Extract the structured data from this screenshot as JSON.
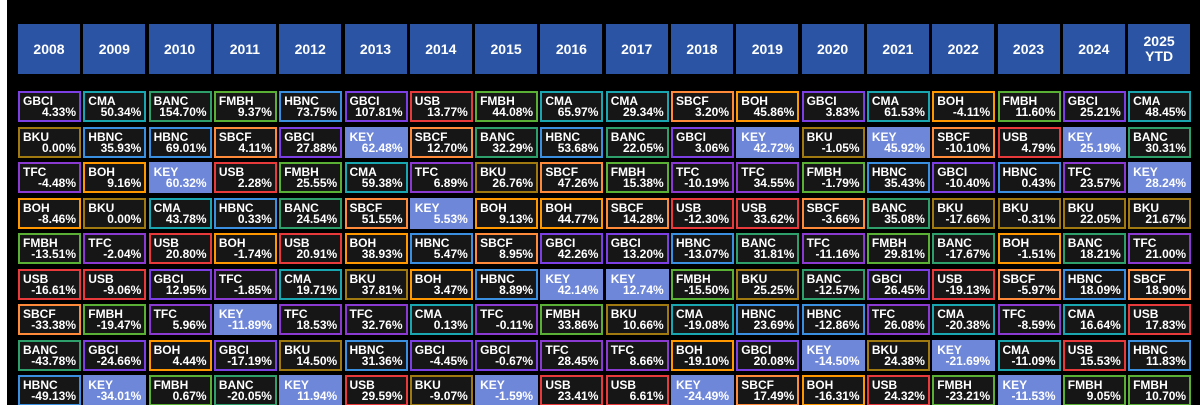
{
  "chart_data": {
    "type": "table",
    "columns": [
      "2008",
      "2009",
      "2010",
      "2011",
      "2012",
      "2013",
      "2014",
      "2015",
      "2016",
      "2017",
      "2018",
      "2019",
      "2020",
      "2021",
      "2022",
      "2023",
      "2024",
      "2025\nYTD"
    ],
    "ticker_colors": {
      "GBCI": "#7b3fe4",
      "CMA": "#1aa6b0",
      "BANC": "#2e9e6a",
      "FMBH": "#5ab034",
      "HBNC": "#3a8fe0",
      "USB": "#e83a3a",
      "SBCF": "#ff8a3a",
      "BOH": "#ff9800",
      "BKU": "#a07a10",
      "TFC": "#8a3ad0",
      "KEY": "#6f87d8"
    },
    "rows": [
      [
        [
          "GBCI",
          "4.33%"
        ],
        [
          "CMA",
          "50.34%"
        ],
        [
          "BANC",
          "154.70%"
        ],
        [
          "FMBH",
          "9.37%"
        ],
        [
          "HBNC",
          "73.75%"
        ],
        [
          "GBCI",
          "107.81%"
        ],
        [
          "USB",
          "13.77%"
        ],
        [
          "FMBH",
          "44.08%"
        ],
        [
          "CMA",
          "65.97%"
        ],
        [
          "CMA",
          "29.34%"
        ],
        [
          "SBCF",
          "3.20%"
        ],
        [
          "BOH",
          "45.86%"
        ],
        [
          "GBCI",
          "3.83%"
        ],
        [
          "CMA",
          "61.53%"
        ],
        [
          "BOH",
          "-4.11%"
        ],
        [
          "FMBH",
          "11.60%"
        ],
        [
          "GBCI",
          "25.21%"
        ],
        [
          "CMA",
          "48.45%"
        ]
      ],
      [
        [
          "BKU",
          "0.00%"
        ],
        [
          "HBNC",
          "35.93%"
        ],
        [
          "HBNC",
          "69.01%"
        ],
        [
          "SBCF",
          "4.11%"
        ],
        [
          "GBCI",
          "27.88%"
        ],
        [
          "KEY",
          "62.48%"
        ],
        [
          "SBCF",
          "12.70%"
        ],
        [
          "BANC",
          "32.29%"
        ],
        [
          "HBNC",
          "53.68%"
        ],
        [
          "BANC",
          "22.05%"
        ],
        [
          "GBCI",
          "3.06%"
        ],
        [
          "KEY",
          "42.72%"
        ],
        [
          "BKU",
          "-1.05%"
        ],
        [
          "KEY",
          "45.92%"
        ],
        [
          "SBCF",
          "-10.10%"
        ],
        [
          "USB",
          "4.79%"
        ],
        [
          "KEY",
          "25.19%"
        ],
        [
          "BANC",
          "30.31%"
        ]
      ],
      [
        [
          "TFC",
          "-4.48%"
        ],
        [
          "BOH",
          "9.16%"
        ],
        [
          "KEY",
          "60.32%"
        ],
        [
          "USB",
          "2.28%"
        ],
        [
          "FMBH",
          "25.55%"
        ],
        [
          "CMA",
          "59.38%"
        ],
        [
          "TFC",
          "6.89%"
        ],
        [
          "BKU",
          "26.76%"
        ],
        [
          "SBCF",
          "47.26%"
        ],
        [
          "FMBH",
          "15.38%"
        ],
        [
          "TFC",
          "-10.19%"
        ],
        [
          "TFC",
          "34.55%"
        ],
        [
          "FMBH",
          "-1.79%"
        ],
        [
          "HBNC",
          "35.43%"
        ],
        [
          "GBCI",
          "-10.40%"
        ],
        [
          "HBNC",
          "0.43%"
        ],
        [
          "TFC",
          "23.57%"
        ],
        [
          "KEY",
          "28.24%"
        ]
      ],
      [
        [
          "BOH",
          "-8.46%"
        ],
        [
          "BKU",
          "0.00%"
        ],
        [
          "CMA",
          "43.78%"
        ],
        [
          "HBNC",
          "0.33%"
        ],
        [
          "BANC",
          "24.54%"
        ],
        [
          "SBCF",
          "51.55%"
        ],
        [
          "KEY",
          "5.53%"
        ],
        [
          "BOH",
          "9.13%"
        ],
        [
          "BOH",
          "44.77%"
        ],
        [
          "SBCF",
          "14.28%"
        ],
        [
          "USB",
          "-12.30%"
        ],
        [
          "USB",
          "33.62%"
        ],
        [
          "SBCF",
          "-3.66%"
        ],
        [
          "BANC",
          "35.08%"
        ],
        [
          "BKU",
          "-17.66%"
        ],
        [
          "BKU",
          "-0.31%"
        ],
        [
          "BKU",
          "22.05%"
        ],
        [
          "BKU",
          "21.67%"
        ]
      ],
      [
        [
          "FMBH",
          "-13.51%"
        ],
        [
          "TFC",
          "-2.04%"
        ],
        [
          "USB",
          "20.80%"
        ],
        [
          "BOH",
          "-1.74%"
        ],
        [
          "USB",
          "20.91%"
        ],
        [
          "BOH",
          "38.93%"
        ],
        [
          "HBNC",
          "5.47%"
        ],
        [
          "SBCF",
          "8.95%"
        ],
        [
          "GBCI",
          "42.26%"
        ],
        [
          "GBCI",
          "13.20%"
        ],
        [
          "HBNC",
          "-13.07%"
        ],
        [
          "BANC",
          "31.81%"
        ],
        [
          "TFC",
          "-11.16%"
        ],
        [
          "FMBH",
          "29.81%"
        ],
        [
          "BANC",
          "-17.67%"
        ],
        [
          "BOH",
          "-1.51%"
        ],
        [
          "BANC",
          "18.21%"
        ],
        [
          "TFC",
          "21.00%"
        ]
      ],
      [
        [
          "USB",
          "-16.61%"
        ],
        [
          "USB",
          "-9.06%"
        ],
        [
          "GBCI",
          "12.95%"
        ],
        [
          "TFC",
          "-1.85%"
        ],
        [
          "CMA",
          "19.71%"
        ],
        [
          "BKU",
          "37.81%"
        ],
        [
          "BOH",
          "3.47%"
        ],
        [
          "HBNC",
          "8.89%"
        ],
        [
          "KEY",
          "42.14%"
        ],
        [
          "KEY",
          "12.74%"
        ],
        [
          "FMBH",
          "-15.50%"
        ],
        [
          "BKU",
          "25.25%"
        ],
        [
          "BANC",
          "-12.57%"
        ],
        [
          "GBCI",
          "26.45%"
        ],
        [
          "USB",
          "-19.13%"
        ],
        [
          "SBCF",
          "-5.97%"
        ],
        [
          "HBNC",
          "18.09%"
        ],
        [
          "SBCF",
          "18.90%"
        ]
      ],
      [
        [
          "SBCF",
          "-33.38%"
        ],
        [
          "FMBH",
          "-19.47%"
        ],
        [
          "TFC",
          "5.96%"
        ],
        [
          "KEY",
          "-11.89%"
        ],
        [
          "TFC",
          "18.53%"
        ],
        [
          "TFC",
          "32.76%"
        ],
        [
          "CMA",
          "0.13%"
        ],
        [
          "TFC",
          "-0.11%"
        ],
        [
          "FMBH",
          "33.86%"
        ],
        [
          "BKU",
          "10.66%"
        ],
        [
          "CMA",
          "-19.08%"
        ],
        [
          "HBNC",
          "23.69%"
        ],
        [
          "HBNC",
          "-12.86%"
        ],
        [
          "TFC",
          "26.08%"
        ],
        [
          "CMA",
          "-20.38%"
        ],
        [
          "TFC",
          "-8.59%"
        ],
        [
          "CMA",
          "16.64%"
        ],
        [
          "USB",
          "17.83%"
        ]
      ],
      [
        [
          "BANC",
          "-43.78%"
        ],
        [
          "GBCI",
          "-24.66%"
        ],
        [
          "BOH",
          "4.44%"
        ],
        [
          "GBCI",
          "-17.19%"
        ],
        [
          "BKU",
          "14.50%"
        ],
        [
          "HBNC",
          "31.36%"
        ],
        [
          "GBCI",
          "-4.45%"
        ],
        [
          "GBCI",
          "-0.67%"
        ],
        [
          "TFC",
          "28.45%"
        ],
        [
          "TFC",
          "8.66%"
        ],
        [
          "BOH",
          "-19.10%"
        ],
        [
          "GBCI",
          "20.08%"
        ],
        [
          "KEY",
          "-14.50%"
        ],
        [
          "BKU",
          "24.38%"
        ],
        [
          "KEY",
          "-21.69%"
        ],
        [
          "CMA",
          "-11.09%"
        ],
        [
          "USB",
          "15.53%"
        ],
        [
          "HBNC",
          "11.83%"
        ]
      ],
      [
        [
          "HBNC",
          "-49.13%"
        ],
        [
          "KEY",
          "-34.01%"
        ],
        [
          "FMBH",
          "0.67%"
        ],
        [
          "BANC",
          "-20.05%"
        ],
        [
          "KEY",
          "11.94%"
        ],
        [
          "USB",
          "29.59%"
        ],
        [
          "BKU",
          "-9.07%"
        ],
        [
          "KEY",
          "-1.59%"
        ],
        [
          "USB",
          "23.41%"
        ],
        [
          "USB",
          "6.61%"
        ],
        [
          "KEY",
          "-24.49%"
        ],
        [
          "SBCF",
          "17.49%"
        ],
        [
          "BOH",
          "-16.31%"
        ],
        [
          "USB",
          "24.32%"
        ],
        [
          "FMBH",
          "-23.21%"
        ],
        [
          "KEY",
          "-11.53%"
        ],
        [
          "FMBH",
          "9.05%"
        ],
        [
          "FMBH",
          "10.70%"
        ]
      ]
    ]
  }
}
